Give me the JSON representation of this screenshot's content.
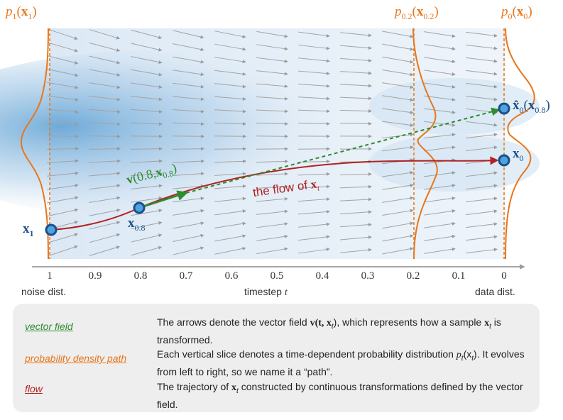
{
  "density_labels": {
    "p1": {
      "base": "p",
      "sub": "1",
      "arg": "x",
      "argsub": "1"
    },
    "p02": {
      "base": "p",
      "sub": "0.2",
      "arg": "x",
      "argsub": "0.2"
    },
    "p0": {
      "base": "p",
      "sub": "0",
      "arg": "x",
      "argsub": "0"
    }
  },
  "points": {
    "x1": {
      "sym": "x",
      "sub": "1"
    },
    "x08": {
      "sym": "x",
      "sub": "0.8"
    },
    "x0": {
      "sym": "x",
      "sub": "0"
    },
    "xhat": {
      "sym": "x̂",
      "sub": "0",
      "arg": "x",
      "argsub": "0.8"
    }
  },
  "vector_label": {
    "v": "v",
    "t": "0.8",
    "x": "x",
    "xsub": "0.8"
  },
  "flow_label": {
    "text": "the flow of ",
    "x": "x",
    "sub": "t"
  },
  "axis": {
    "ticks": [
      "1",
      "0.9",
      "0.8",
      "0.7",
      "0.6",
      "0.5",
      "0.4",
      "0.3",
      "0.2",
      "0.1",
      "0"
    ],
    "left_caption": "noise dist.",
    "center_caption": "timestep",
    "center_var": "t",
    "right_caption": "data dist."
  },
  "legend": [
    {
      "term": "vector field",
      "color": "#2e8b2e",
      "desc_a": "The arrows denote the vector field ",
      "desc_math": "v(t, x",
      "desc_sub": "t",
      "desc_b": "), which represents how a sample ",
      "desc_x": "x",
      "desc_xsub": "t",
      "desc_c": " is transformed."
    },
    {
      "term": "probability density path",
      "color": "#e8761b",
      "desc_a": "Each vertical slice denotes a time-dependent probability distribution ",
      "desc_math": "p",
      "desc_sub": "t",
      "desc_b": "(x",
      "desc_xsub": "t",
      "desc_c": "). It evolves from left to right, so we name it a “path”."
    },
    {
      "term": "flow",
      "color": "#b22222",
      "desc_a": "The trajectory of ",
      "desc_math": "x",
      "desc_sub": "t",
      "desc_b": " constructed by continuous transformations defined by the vector field."
    }
  ],
  "colors": {
    "orange": "#e8761b",
    "flow": "#b22222",
    "vector": "#2e8b2e",
    "point": "#1b6fb0"
  }
}
